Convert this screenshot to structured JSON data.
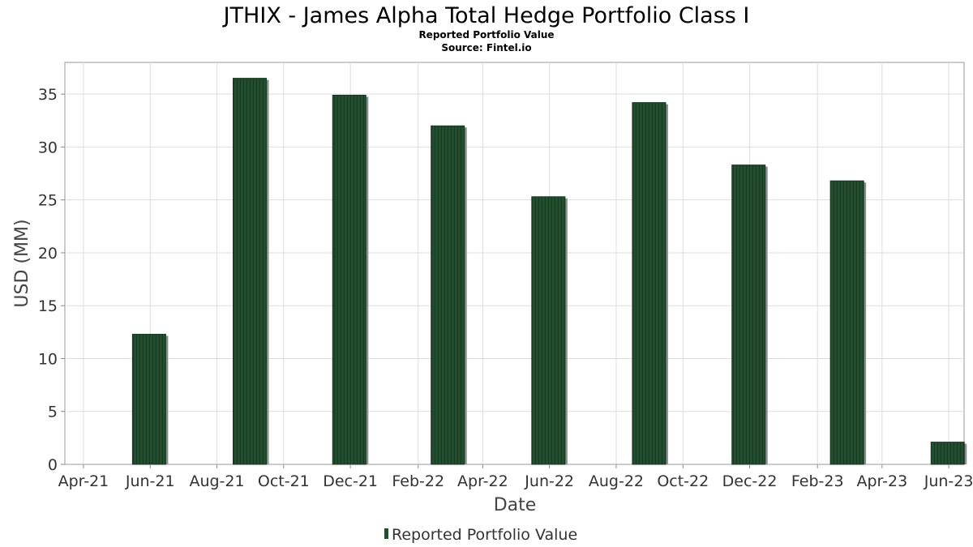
{
  "chart_data": {
    "type": "bar",
    "title": "JTHIX - James Alpha Total Hedge Portfolio Class I",
    "subtitle": "Reported Portfolio Value",
    "source": "Source: Fintel.io",
    "xlabel": "Date",
    "ylabel": "USD (MM)",
    "ylim": [
      0,
      38
    ],
    "yticks": [
      0,
      5,
      10,
      15,
      20,
      25,
      30,
      35
    ],
    "xlim": [
      "2021-03-15",
      "2023-06-15"
    ],
    "xticks": [
      "Apr-21",
      "Jun-21",
      "Aug-21",
      "Oct-21",
      "Dec-21",
      "Feb-22",
      "Apr-22",
      "Jun-22",
      "Aug-22",
      "Oct-22",
      "Dec-22",
      "Feb-23",
      "Apr-23",
      "Jun-23"
    ],
    "grid": true,
    "legend_position": "bottom-center",
    "bar_color": "#1e4d2b",
    "series": [
      {
        "name": "Reported Portfolio Value",
        "x": [
          "2021-05-31",
          "2021-08-31",
          "2021-11-30",
          "2022-02-28",
          "2022-05-31",
          "2022-08-31",
          "2022-11-30",
          "2023-02-28",
          "2023-05-31"
        ],
        "values": [
          12.3,
          36.5,
          34.9,
          32.0,
          25.3,
          34.2,
          28.3,
          26.8,
          2.1
        ]
      }
    ]
  }
}
